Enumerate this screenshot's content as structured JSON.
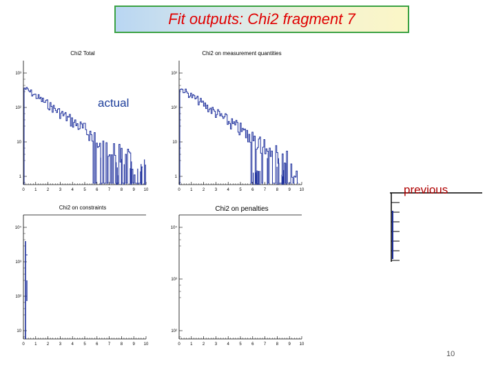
{
  "slide": {
    "title": "Fit outputs: Chi2 fragment 7",
    "label_actual": "actual",
    "label_previous": "previous",
    "page_number": "10"
  },
  "plots": [
    {
      "id": "chi2-total",
      "title": "Chi2 Total",
      "x_ticks": [
        "0",
        "1",
        "2",
        "3",
        "4",
        "5",
        "6",
        "7",
        "8",
        "9",
        "10"
      ],
      "y_ticks": [
        "1",
        "10",
        "10²",
        "10³"
      ],
      "trend": "decaying"
    },
    {
      "id": "chi2-measurement",
      "title": "Chi2 on measurement quantities",
      "x_ticks": [
        "0",
        "1",
        "2",
        "3",
        "4",
        "5",
        "6",
        "7",
        "8",
        "9",
        "10"
      ],
      "y_ticks": [
        "1",
        "10",
        "10²",
        "10³"
      ],
      "trend": "decaying"
    },
    {
      "id": "chi2-constraints",
      "title": "Chi2 on constraints",
      "x_ticks": [
        "0",
        "1",
        "2",
        "3",
        "4",
        "5",
        "6",
        "7",
        "8",
        "9",
        "10"
      ],
      "y_ticks": [
        "10",
        "10²",
        "10³",
        "10⁴"
      ],
      "trend": "spike"
    },
    {
      "id": "chi2-penalties",
      "title": "Chi2 on penalties",
      "x_ticks": [
        "0",
        "1",
        "2",
        "3",
        "4",
        "5",
        "6",
        "7",
        "8",
        "9",
        "10"
      ],
      "y_ticks": [
        "10²",
        "10³",
        "10⁴"
      ],
      "trend": "empty"
    }
  ],
  "colors": {
    "histogram": "#1d2f9c",
    "axis": "#000000",
    "title_text": "#e00000",
    "title_border": "#3aa142"
  }
}
